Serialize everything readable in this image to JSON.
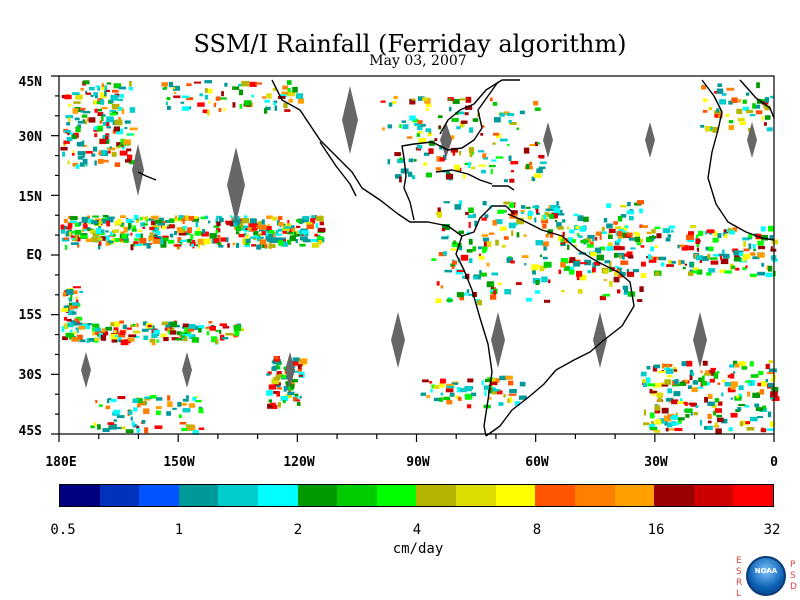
{
  "title": "SSM/I Rainfall (Ferriday algorithm)",
  "subtitle": "May 03, 2007",
  "lat_labels": [
    "45N",
    "30N",
    "15N",
    "EQ",
    "15S",
    "30S",
    "45S"
  ],
  "lon_labels": [
    "180E",
    "150W",
    "120W",
    "90W",
    "60W",
    "30W",
    "0"
  ],
  "map_extent": {
    "lon_min": -180,
    "lon_max": 0,
    "lat_min": -45,
    "lat_max": 45
  },
  "colorbar": {
    "colors": [
      "#00007f",
      "#0033bb",
      "#0055ff",
      "#009999",
      "#00cccc",
      "#00ffff",
      "#009900",
      "#00cc00",
      "#00ff00",
      "#b3b300",
      "#dddd00",
      "#ffff00",
      "#ff5500",
      "#ff7f00",
      "#ff9f00",
      "#990000",
      "#cc0000",
      "#ff0000"
    ],
    "tick_labels": [
      "0.5",
      "1",
      "2",
      "4",
      "8",
      "16",
      "32"
    ],
    "units": "cm/day"
  },
  "logo": {
    "left_letters": "E S R L",
    "right_letters": "P S D",
    "emblem_text": "NOAA"
  }
}
